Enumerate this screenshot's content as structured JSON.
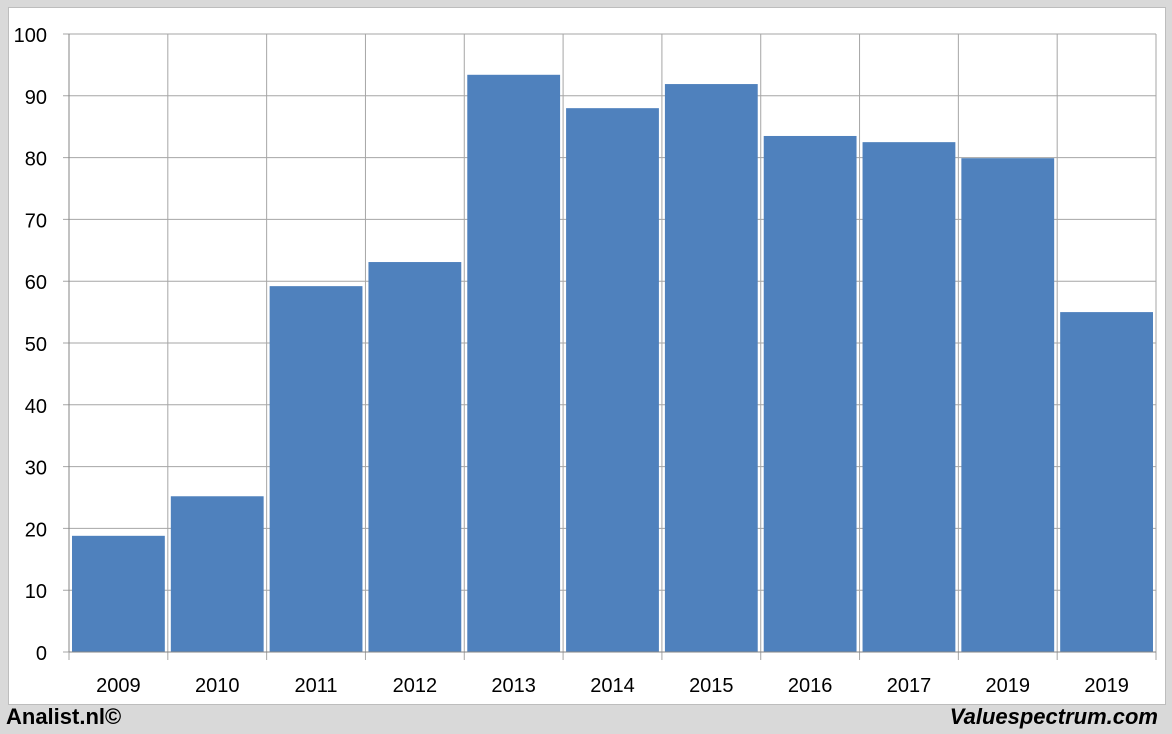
{
  "chart_data": {
    "type": "bar",
    "title": "",
    "xlabel": "",
    "ylabel": "",
    "categories": [
      "2009",
      "2010",
      "2011",
      "2012",
      "2013",
      "2014",
      "2015",
      "2016",
      "2017",
      "2019",
      "2019"
    ],
    "values": [
      18.8,
      25.2,
      59.2,
      63.1,
      93.4,
      88.0,
      91.9,
      83.5,
      82.5,
      79.9,
      55.0
    ],
    "ylim": [
      0,
      100
    ],
    "yticks": [
      0,
      10,
      20,
      30,
      40,
      50,
      60,
      70,
      80,
      90,
      100
    ],
    "grid": true,
    "bar_color": "#4f81bd",
    "grid_color": "#a6a6a6"
  },
  "footer": {
    "left": "Analist.nl©",
    "right": "Valuespectrum.com"
  }
}
